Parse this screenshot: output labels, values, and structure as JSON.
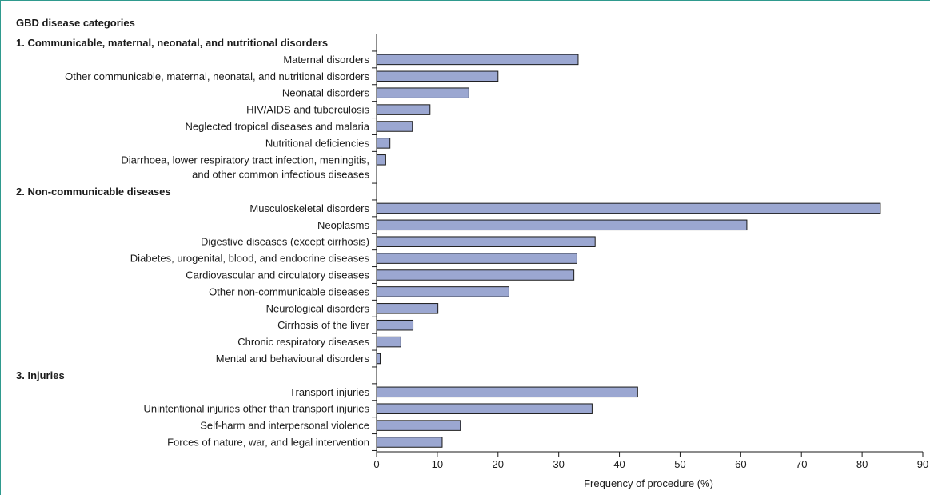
{
  "chart_data": {
    "type": "bar",
    "orientation": "horizontal",
    "title": "GBD disease categories",
    "xlabel": "Frequency of procedure (%)",
    "xlim": [
      0,
      90
    ],
    "xticks": [
      0,
      10,
      20,
      30,
      40,
      50,
      60,
      70,
      80,
      90
    ],
    "groups": [
      {
        "name": "1. Communicable, maternal, neonatal, and nutritional disorders",
        "items": [
          {
            "label": [
              "Maternal disorders"
            ],
            "value": 33.2
          },
          {
            "label": [
              "Other communicable, maternal, neonatal, and nutritional disorders"
            ],
            "value": 20.0
          },
          {
            "label": [
              "Neonatal disorders"
            ],
            "value": 15.2
          },
          {
            "label": [
              "HIV/AIDS and tuberculosis"
            ],
            "value": 8.8
          },
          {
            "label": [
              "Neglected tropical diseases and malaria"
            ],
            "value": 5.9
          },
          {
            "label": [
              "Nutritional deficiencies"
            ],
            "value": 2.2
          },
          {
            "label": [
              "Diarrhoea, lower respiratory tract infection, meningitis,",
              "and other common infectious diseases"
            ],
            "value": 1.5
          }
        ]
      },
      {
        "name": "2. Non-communicable diseases",
        "items": [
          {
            "label": [
              "Musculoskeletal disorders"
            ],
            "value": 83.0
          },
          {
            "label": [
              "Neoplasms"
            ],
            "value": 61.0
          },
          {
            "label": [
              "Digestive diseases (except cirrhosis)"
            ],
            "value": 36.0
          },
          {
            "label": [
              "Diabetes, urogenital, blood, and endocrine diseases"
            ],
            "value": 33.0
          },
          {
            "label": [
              "Cardiovascular and circulatory diseases"
            ],
            "value": 32.5
          },
          {
            "label": [
              "Other non-communicable diseases"
            ],
            "value": 21.8
          },
          {
            "label": [
              "Neurological disorders"
            ],
            "value": 10.1
          },
          {
            "label": [
              "Cirrhosis of the liver"
            ],
            "value": 6.0
          },
          {
            "label": [
              "Chronic respiratory diseases"
            ],
            "value": 4.0
          },
          {
            "label": [
              "Mental and behavioural disorders"
            ],
            "value": 0.6
          }
        ]
      },
      {
        "name": "3. Injuries",
        "items": [
          {
            "label": [
              "Transport injuries"
            ],
            "value": 43.0
          },
          {
            "label": [
              "Unintentional injuries other than transport injuries"
            ],
            "value": 35.5
          },
          {
            "label": [
              "Self-harm and interpersonal violence"
            ],
            "value": 13.8
          },
          {
            "label": [
              "Forces of nature, war, and legal intervention"
            ],
            "value": 10.8
          }
        ]
      }
    ],
    "grid": false,
    "legend": "none",
    "colors": {
      "bar_fill": "#9ba7d1",
      "bar_stroke": "#1a1a1a",
      "frame": "#2f9a8e"
    }
  }
}
